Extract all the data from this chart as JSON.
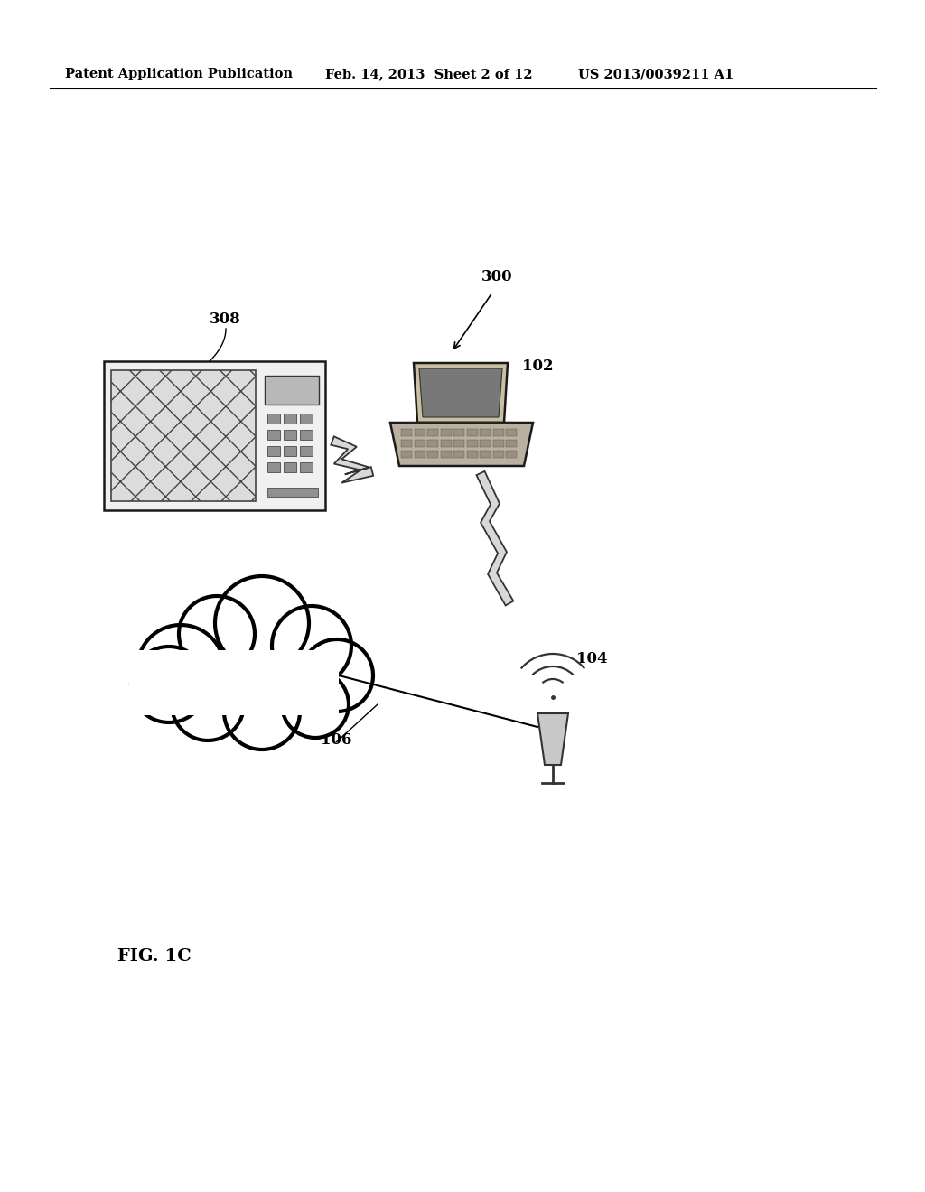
{
  "bg_color": "#ffffff",
  "header_left": "Patent Application Publication",
  "header_mid": "Feb. 14, 2013  Sheet 2 of 12",
  "header_right": "US 2013/0039211 A1",
  "label_308": "308",
  "label_300": "300",
  "label_102": "102",
  "label_104": "104",
  "label_106": "106",
  "fig_label": "FIG. 1C",
  "line_color": "#000000",
  "dark_color": "#1a1a1a",
  "mid_color": "#555555",
  "light_gray": "#cccccc",
  "med_gray": "#999999",
  "bolt_fill": "#d8d8d8",
  "bolt_edge": "#333333"
}
